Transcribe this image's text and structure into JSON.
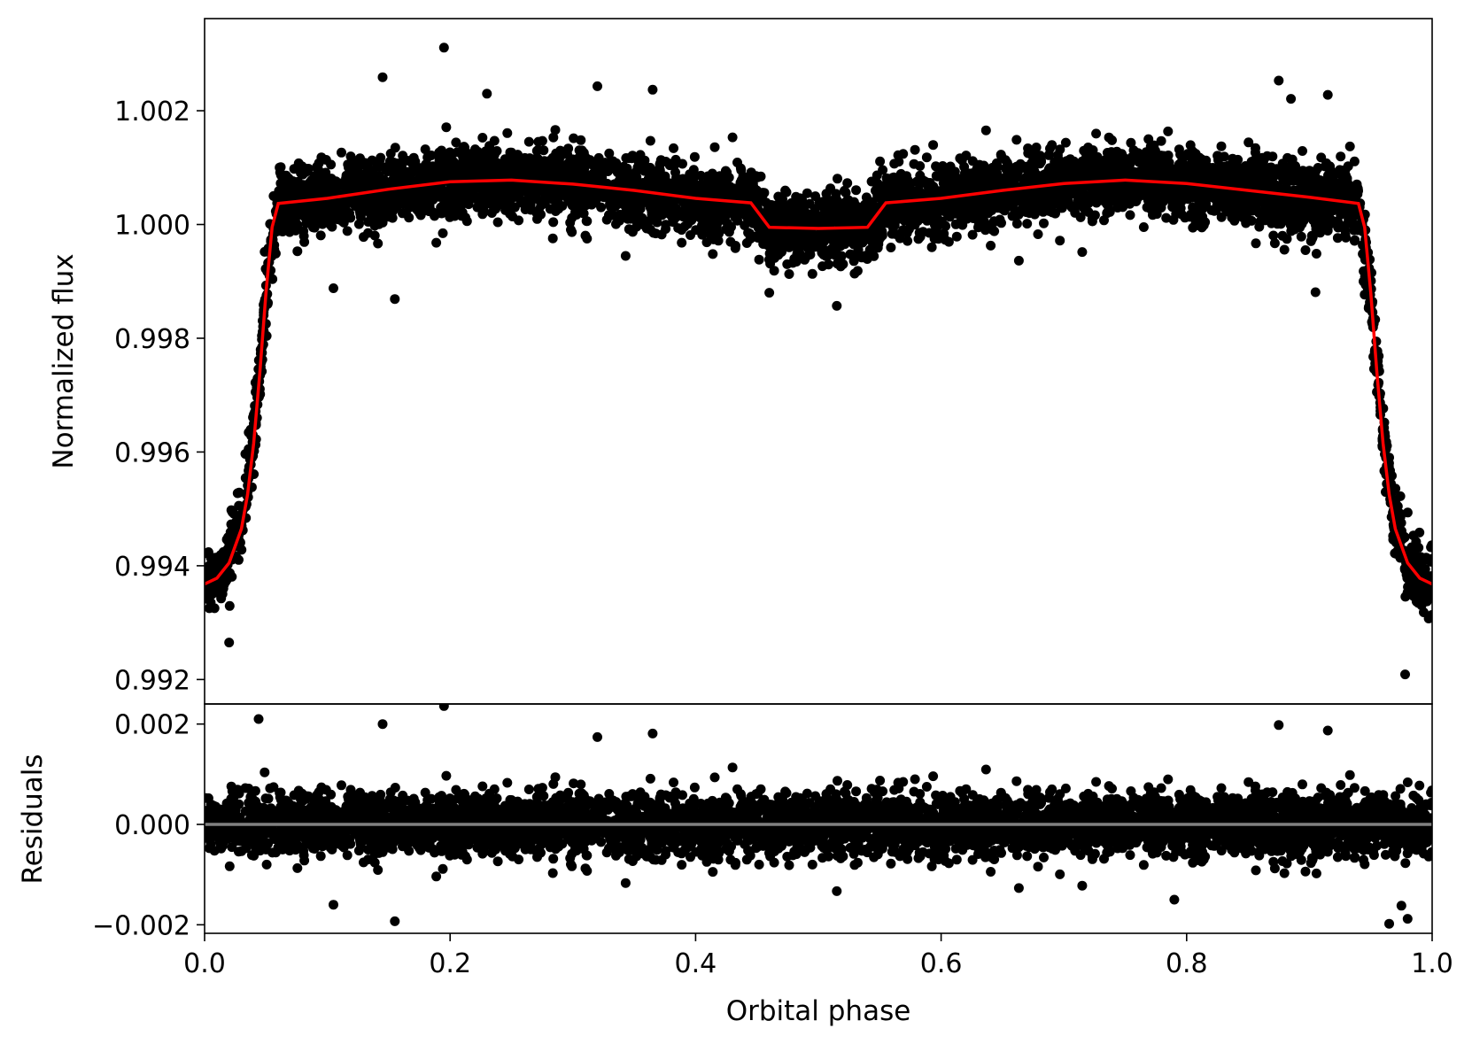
{
  "chart_data": [
    {
      "type": "scatter",
      "panel": "top",
      "xlabel": "",
      "ylabel": "Normalized flux",
      "xlim": [
        0.0,
        1.0
      ],
      "ylim": [
        0.99157,
        1.00362
      ],
      "yticks": [
        0.992,
        0.994,
        0.996,
        0.998,
        1.0,
        1.002
      ],
      "ytick_labels": [
        "0.992",
        "0.994",
        "0.996",
        "0.998",
        "1.000",
        "1.002"
      ],
      "grid": false,
      "legend": "none",
      "series": [
        {
          "kind": "points",
          "color": "#000000",
          "description_of_shape": "dense phase-folded photometry",
          "model_envelope": [
            [
              0.0,
              0.99368
            ],
            [
              0.01,
              0.9938
            ],
            [
              0.02,
              0.9941
            ],
            [
              0.03,
              0.9948
            ],
            [
              0.04,
              0.9962
            ],
            [
              0.05,
              0.99875
            ],
            [
              0.06,
              1.00037
            ],
            [
              0.1,
              1.00045
            ],
            [
              0.15,
              1.0006
            ],
            [
              0.2,
              1.00075
            ],
            [
              0.25,
              1.00078
            ],
            [
              0.3,
              1.0007
            ],
            [
              0.35,
              1.0006
            ],
            [
              0.4,
              1.00045
            ],
            [
              0.445,
              1.00037
            ],
            [
              0.46,
              0.99995
            ],
            [
              0.5,
              0.99993
            ],
            [
              0.54,
              0.99995
            ],
            [
              0.555,
              1.00037
            ],
            [
              0.6,
              1.00045
            ],
            [
              0.65,
              1.0006
            ],
            [
              0.7,
              1.00072
            ],
            [
              0.75,
              1.00078
            ],
            [
              0.8,
              1.00072
            ],
            [
              0.85,
              1.0006
            ],
            [
              0.9,
              1.00048
            ],
            [
              0.94,
              1.00037
            ],
            [
              0.95,
              0.99875
            ],
            [
              0.96,
              0.9962
            ],
            [
              0.97,
              0.9948
            ],
            [
              0.98,
              0.9941
            ],
            [
              0.99,
              0.9938
            ],
            [
              1.0,
              0.99368
            ]
          ],
          "scatter_sigma": 0.00042,
          "outliers": [
            [
              0.195,
              1.00311
            ],
            [
              0.145,
              1.00259
            ],
            [
              0.32,
              1.00243
            ],
            [
              0.365,
              1.00237
            ],
            [
              0.875,
              1.00253
            ],
            [
              0.885,
              1.00221
            ],
            [
              0.915,
              1.00228
            ],
            [
              0.23,
              1.0023
            ],
            [
              0.155,
              0.99869
            ],
            [
              0.515,
              0.99857
            ],
            [
              0.905,
              0.99881
            ],
            [
              0.46,
              0.9988
            ],
            [
              0.978,
              0.99209
            ],
            [
              0.105,
              0.99888
            ],
            [
              0.02,
              0.99265
            ]
          ]
        },
        {
          "kind": "line",
          "color": "#ff0000",
          "x": [
            0.0,
            0.01,
            0.02,
            0.03,
            0.035,
            0.04,
            0.045,
            0.05,
            0.055,
            0.06,
            0.1,
            0.15,
            0.2,
            0.25,
            0.3,
            0.35,
            0.4,
            0.445,
            0.46,
            0.5,
            0.54,
            0.555,
            0.6,
            0.65,
            0.7,
            0.75,
            0.8,
            0.85,
            0.9,
            0.94,
            0.945,
            0.95,
            0.955,
            0.96,
            0.965,
            0.97,
            0.98,
            0.99,
            1.0
          ],
          "y": [
            0.99368,
            0.99378,
            0.99405,
            0.99465,
            0.99525,
            0.99615,
            0.9974,
            0.9988,
            0.99995,
            1.00037,
            1.00046,
            1.00062,
            1.00075,
            1.00078,
            1.00071,
            1.0006,
            1.00046,
            1.00038,
            0.99995,
            0.99993,
            0.99995,
            1.00038,
            1.00046,
            1.0006,
            1.00072,
            1.00078,
            1.00072,
            1.0006,
            1.00048,
            1.00037,
            0.99995,
            0.9988,
            0.9974,
            0.99615,
            0.99525,
            0.99465,
            0.99405,
            0.99378,
            0.99368
          ]
        }
      ]
    },
    {
      "type": "scatter",
      "panel": "bottom",
      "xlabel": "Orbital phase",
      "ylabel": "Residuals",
      "xlim": [
        0.0,
        1.0
      ],
      "ylim": [
        -0.00217,
        0.0024
      ],
      "xticks": [
        0.0,
        0.2,
        0.4,
        0.6,
        0.8,
        1.0
      ],
      "xtick_labels": [
        "0.0",
        "0.2",
        "0.4",
        "0.6",
        "0.8",
        "1.0"
      ],
      "yticks": [
        -0.002,
        0.0,
        0.002
      ],
      "ytick_labels": [
        "−0.002",
        "0.000",
        "0.002"
      ],
      "grid": false,
      "legend": "none",
      "series": [
        {
          "kind": "points",
          "color": "#000000",
          "scatter_sigma": 0.00042,
          "outliers": [
            [
              0.195,
              0.00236
            ],
            [
              0.044,
              0.0021
            ],
            [
              0.145,
              0.002
            ],
            [
              0.32,
              0.00174
            ],
            [
              0.365,
              0.00181
            ],
            [
              0.875,
              0.00198
            ],
            [
              0.915,
              0.00187
            ],
            [
              0.155,
              -0.00193
            ],
            [
              0.98,
              -0.00188
            ],
            [
              0.975,
              -0.00162
            ],
            [
              0.965,
              -0.00198
            ],
            [
              0.105,
              -0.0016
            ],
            [
              0.515,
              -0.00133
            ],
            [
              0.79,
              -0.0015
            ]
          ]
        },
        {
          "kind": "line",
          "color": "#808080",
          "x": [
            0.0,
            1.0
          ],
          "y": [
            0.0,
            0.0
          ]
        }
      ]
    }
  ]
}
